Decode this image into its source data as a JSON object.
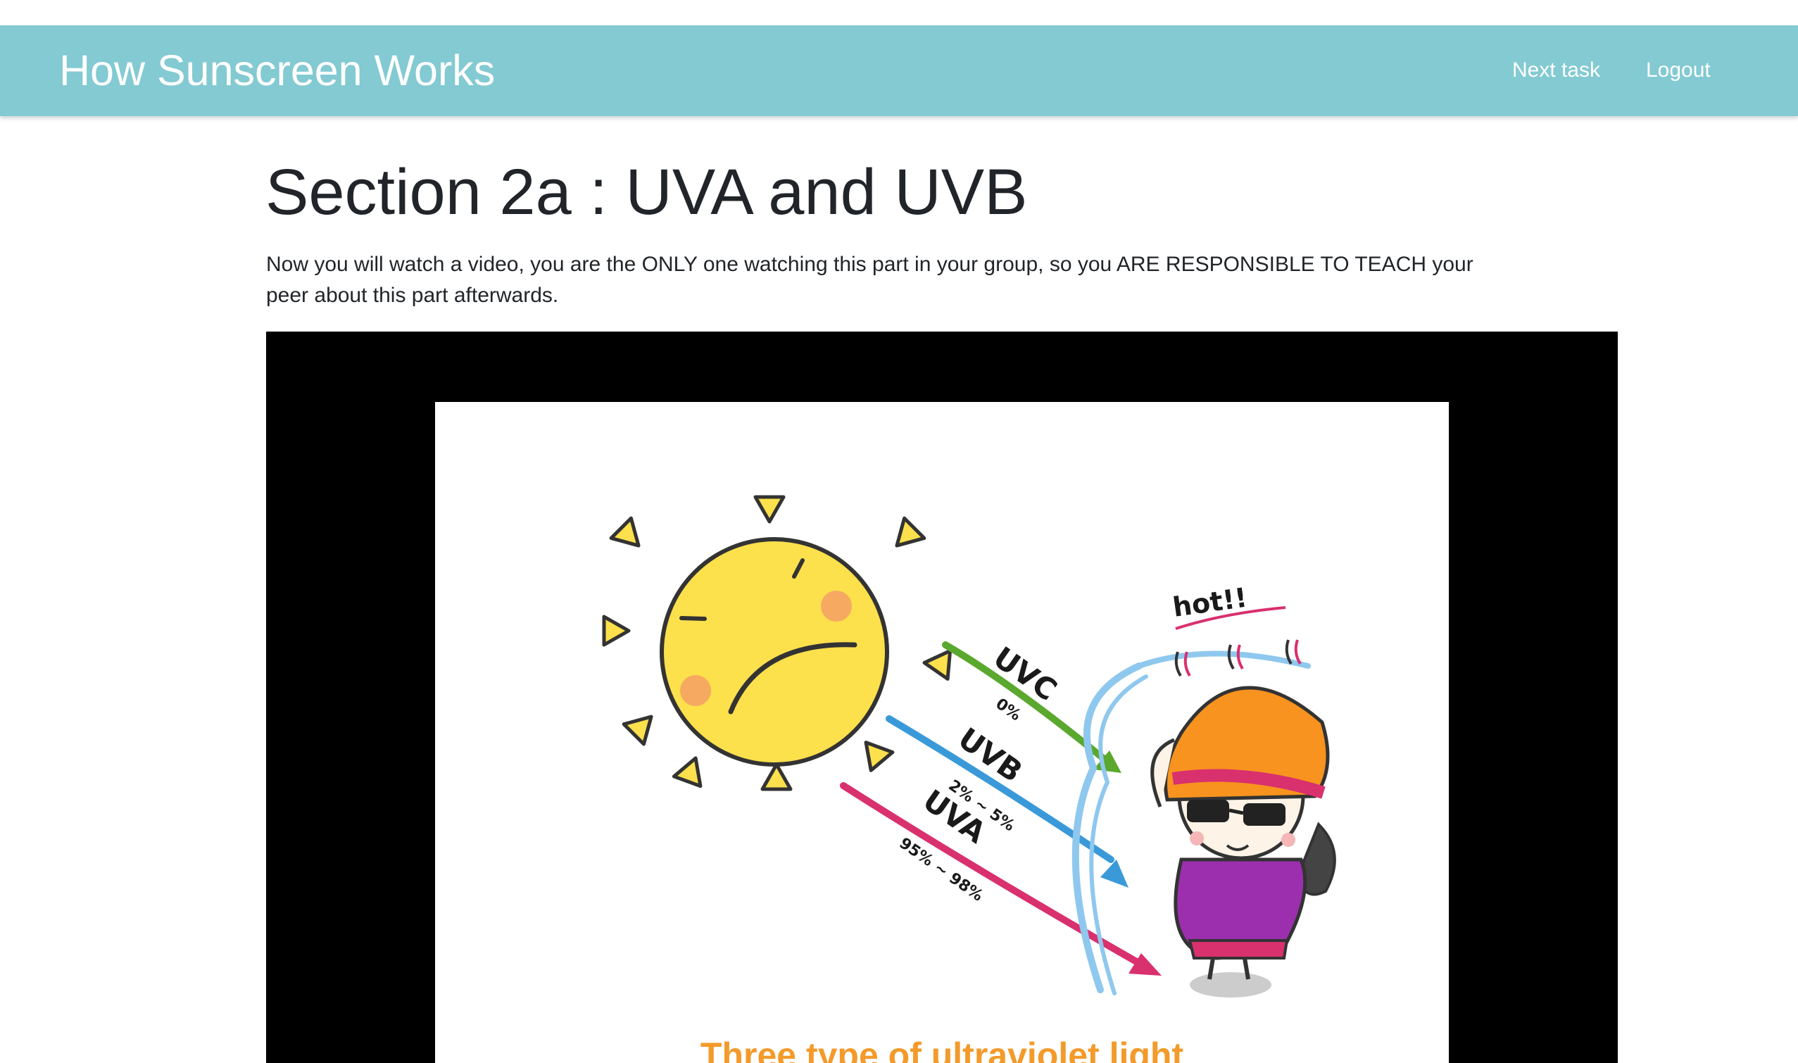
{
  "header": {
    "brand": "How Sunscreen Works",
    "nav": {
      "next_task": "Next task",
      "logout": "Logout"
    },
    "background_color": "#83CAD2"
  },
  "main": {
    "title": "Section 2a : UVA and UVB",
    "instructions": "Now you will watch a video, you are the ONLY one watching this part in your group, so you ARE RESPONSIBLE TO TEACH your peer about this part afterwards."
  },
  "video": {
    "illustration": {
      "uvc_label": "UVC",
      "uvc_percent": "0%",
      "uvb_label": "UVB",
      "uvb_percent": "2% ~ 5%",
      "uva_label": "UVA",
      "uva_percent": "95% ~ 98%",
      "speech": "hot!!",
      "caption": "Three type of ultraviolet light",
      "colors": {
        "sun": "#FCE04C",
        "uvc_arrow": "#5BA82E",
        "uvb_arrow": "#3A9AD9",
        "uva_arrow": "#D9306E",
        "hat": "#F7931E",
        "shirt": "#9B2FAE",
        "caption": "#F39A2A"
      }
    }
  }
}
